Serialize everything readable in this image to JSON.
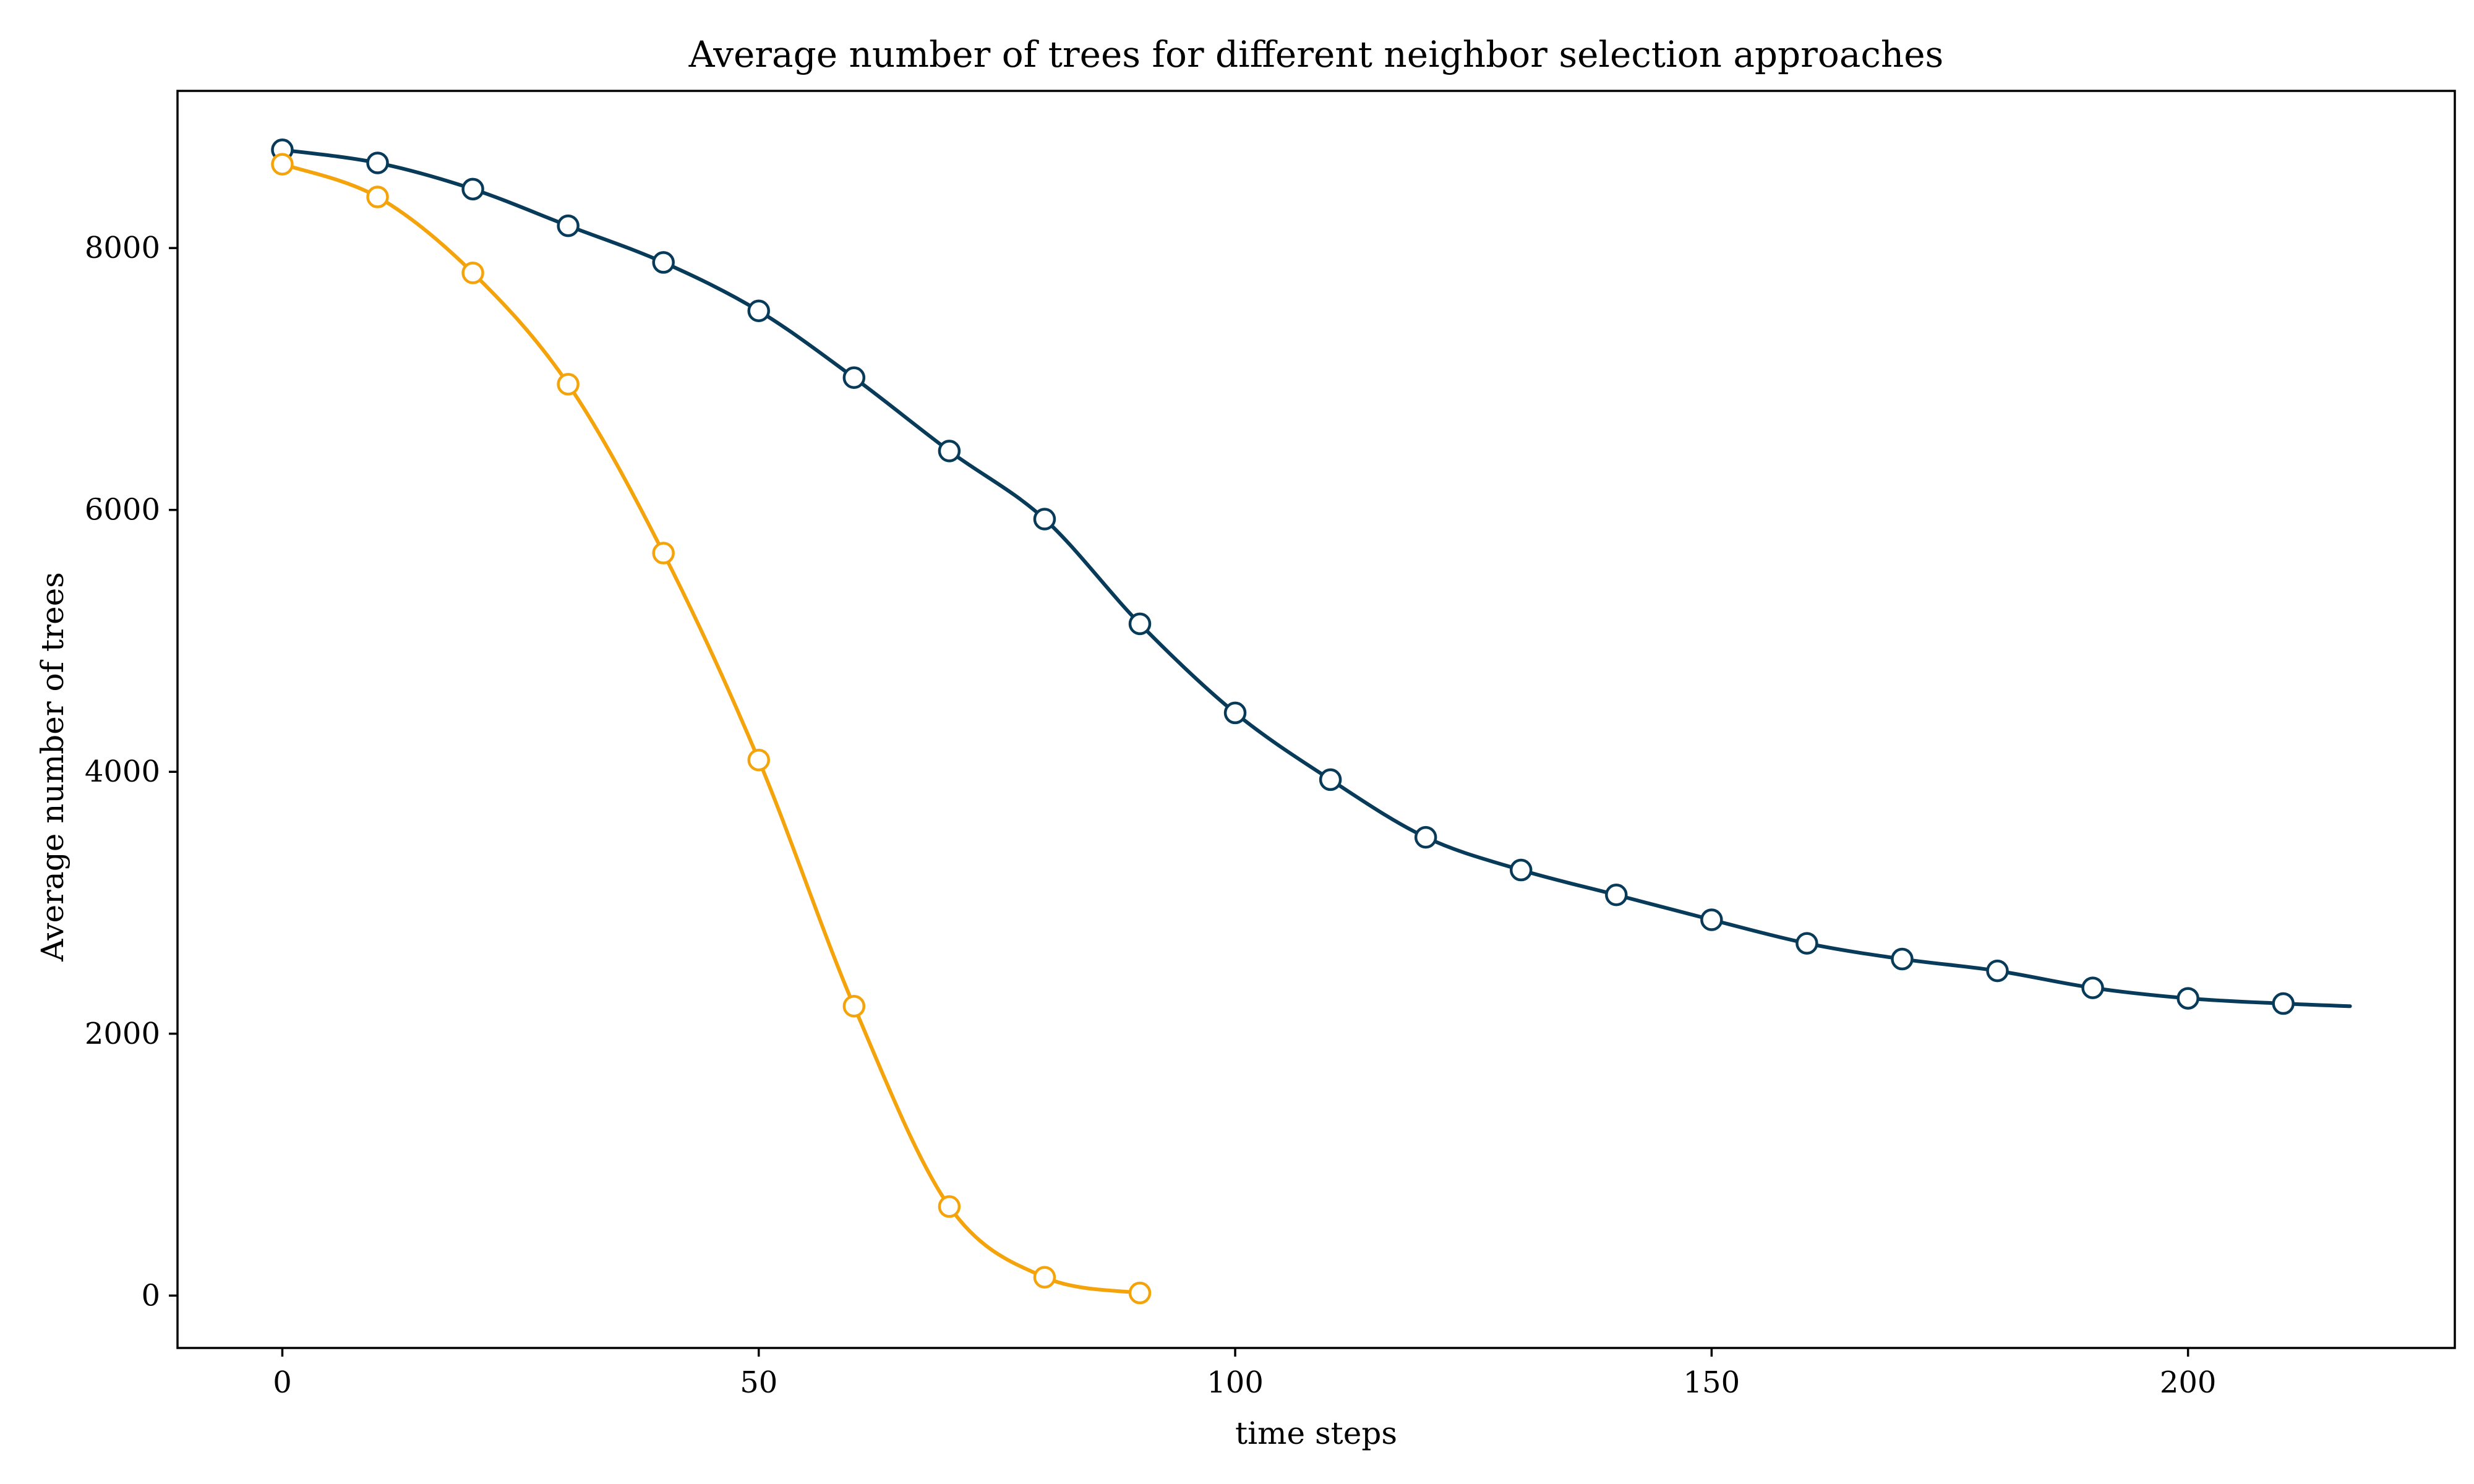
{
  "chart_data": {
    "type": "line",
    "title": "Average number of trees for different neighbor selection approaches",
    "xlabel": "time steps",
    "ylabel": "Average number of trees",
    "xlim": [
      -11,
      228
    ],
    "ylim": [
      -400,
      9200
    ],
    "xticks": [
      0,
      50,
      100,
      150,
      200
    ],
    "yticks": [
      0,
      2000,
      4000,
      6000,
      8000
    ],
    "grid": false,
    "legend": "none",
    "series": [
      {
        "color": "#073b59",
        "marker": "circle-open",
        "x": [
          0,
          10,
          20,
          30,
          40,
          50,
          60,
          70,
          80,
          90,
          100,
          110,
          120,
          130,
          140,
          150,
          160,
          170,
          180,
          190,
          200,
          210,
          217
        ],
        "y": [
          8750,
          8650,
          8450,
          8170,
          7890,
          7520,
          7010,
          6450,
          5930,
          5130,
          4450,
          3940,
          3500,
          3250,
          3060,
          2870,
          2690,
          2570,
          2480,
          2350,
          2270,
          2230,
          2210
        ]
      },
      {
        "color": "#f5a30a",
        "marker": "circle-open",
        "x": [
          0,
          10,
          20,
          30,
          40,
          50,
          60,
          70,
          80,
          90
        ],
        "y": [
          8640,
          8390,
          7810,
          6960,
          5670,
          4090,
          2210,
          680,
          140,
          20
        ]
      }
    ]
  }
}
